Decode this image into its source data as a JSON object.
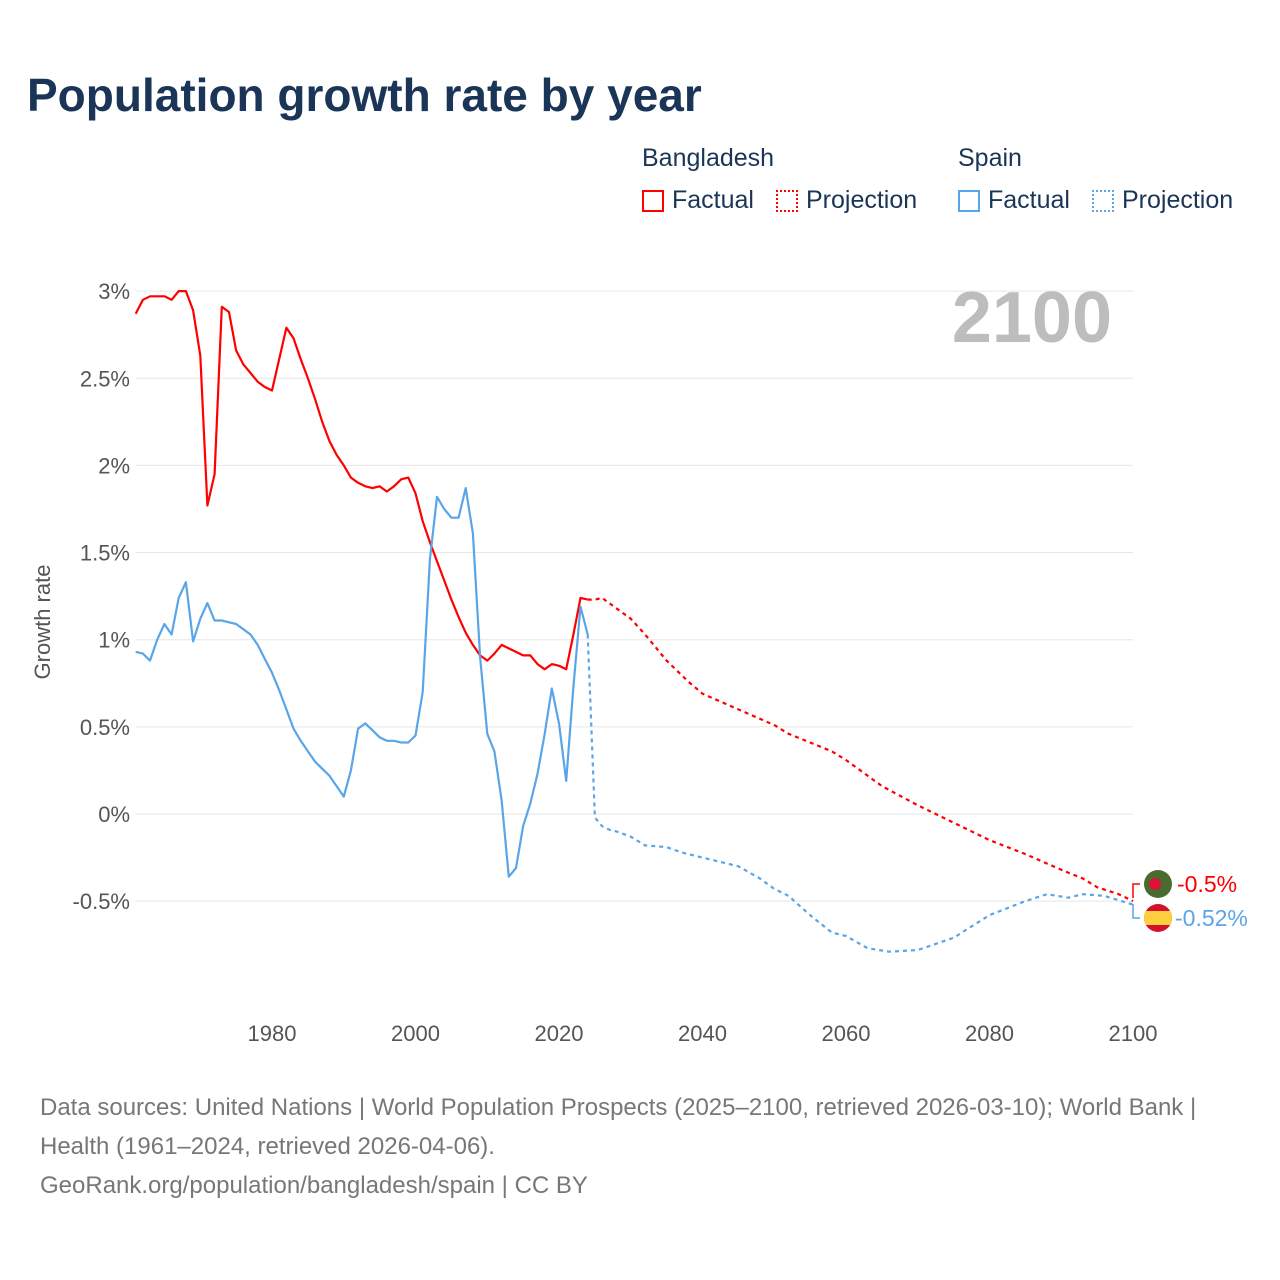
{
  "title": "Population growth rate by year",
  "legend": {
    "groups": [
      {
        "country": "Bangladesh",
        "factual": "Factual",
        "projection": "Projection",
        "color": "#ff0000"
      },
      {
        "country": "Spain",
        "factual": "Factual",
        "projection": "Projection",
        "color": "#5aa5e8"
      }
    ]
  },
  "year_display": "2100",
  "end_labels": {
    "bangladesh": "-0.5%",
    "spain": "-0.52%"
  },
  "footer": {
    "sources": "Data sources: United Nations | World Population Prospects (2025–2100, retrieved 2026-03-10); World Bank | Health (1961–2024, retrieved 2026-04-06).",
    "credit": "GeoRank.org/population/bangladesh/spain | CC BY"
  },
  "chart_data": {
    "type": "line",
    "title": "Population growth rate by year",
    "xlabel": "",
    "ylabel": "Growth rate",
    "xlim": [
      1961,
      2100
    ],
    "ylim": [
      -1.0,
      3.0
    ],
    "yticks": [
      3,
      2.5,
      2,
      1.5,
      1,
      0.5,
      0,
      -0.5
    ],
    "ytick_labels": [
      "3%",
      "2.5%",
      "2%",
      "1.5%",
      "1%",
      "0.5%",
      "0%",
      "-0.5%"
    ],
    "xticks": [
      1980,
      2000,
      2020,
      2040,
      2060,
      2080,
      2100
    ],
    "xtick_labels": [
      "1980",
      "2000",
      "2020",
      "2040",
      "2060",
      "2080",
      "2100"
    ],
    "grid": true,
    "legend_position": "top-right",
    "series": [
      {
        "name": "Bangladesh Factual",
        "color": "#ff0000",
        "style": "solid",
        "x": [
          1961,
          1962,
          1963,
          1964,
          1965,
          1966,
          1967,
          1968,
          1969,
          1970,
          1971,
          1972,
          1973,
          1974,
          1975,
          1976,
          1977,
          1978,
          1979,
          1980,
          1981,
          1982,
          1983,
          1984,
          1985,
          1986,
          1987,
          1988,
          1989,
          1990,
          1991,
          1992,
          1993,
          1994,
          1995,
          1996,
          1997,
          1998,
          1999,
          2000,
          2001,
          2002,
          2003,
          2004,
          2005,
          2006,
          2007,
          2008,
          2009,
          2010,
          2011,
          2012,
          2013,
          2014,
          2015,
          2016,
          2017,
          2018,
          2019,
          2020,
          2021,
          2022,
          2023,
          2024
        ],
        "y": [
          2.87,
          2.95,
          2.97,
          2.97,
          2.97,
          2.95,
          3.0,
          3.0,
          2.89,
          2.63,
          1.77,
          1.95,
          2.91,
          2.88,
          2.66,
          2.58,
          2.53,
          2.48,
          2.45,
          2.43,
          2.61,
          2.79,
          2.73,
          2.61,
          2.5,
          2.38,
          2.25,
          2.14,
          2.06,
          2.0,
          1.93,
          1.9,
          1.88,
          1.87,
          1.88,
          1.85,
          1.88,
          1.92,
          1.93,
          1.84,
          1.68,
          1.56,
          1.45,
          1.34,
          1.23,
          1.13,
          1.04,
          0.97,
          0.91,
          0.88,
          0.92,
          0.97,
          0.95,
          0.93,
          0.91,
          0.91,
          0.86,
          0.83,
          0.86,
          0.85,
          0.83,
          1.03,
          1.24,
          1.23
        ]
      },
      {
        "name": "Bangladesh Projection",
        "color": "#ff0000",
        "style": "dotted",
        "x": [
          2024,
          2025,
          2026,
          2028,
          2030,
          2032,
          2035,
          2038,
          2040,
          2045,
          2050,
          2052,
          2055,
          2058,
          2060,
          2065,
          2070,
          2075,
          2080,
          2085,
          2090,
          2093,
          2095,
          2098,
          2100
        ],
        "y": [
          1.23,
          1.23,
          1.24,
          1.18,
          1.12,
          1.03,
          0.88,
          0.76,
          0.69,
          0.6,
          0.51,
          0.46,
          0.41,
          0.36,
          0.31,
          0.16,
          0.05,
          -0.05,
          -0.15,
          -0.23,
          -0.32,
          -0.37,
          -0.42,
          -0.46,
          -0.5
        ]
      },
      {
        "name": "Spain Factual",
        "color": "#5aa5e8",
        "style": "solid",
        "x": [
          1961,
          1962,
          1963,
          1964,
          1965,
          1966,
          1967,
          1968,
          1969,
          1970,
          1971,
          1972,
          1973,
          1974,
          1975,
          1976,
          1977,
          1978,
          1979,
          1980,
          1981,
          1982,
          1983,
          1984,
          1985,
          1986,
          1987,
          1988,
          1989,
          1990,
          1991,
          1992,
          1993,
          1994,
          1995,
          1996,
          1997,
          1998,
          1999,
          2000,
          2001,
          2002,
          2003,
          2004,
          2005,
          2006,
          2007,
          2008,
          2009,
          2010,
          2011,
          2012,
          2013,
          2014,
          2015,
          2016,
          2017,
          2018,
          2019,
          2020,
          2021,
          2022,
          2023,
          2024
        ],
        "y": [
          0.93,
          0.92,
          0.88,
          1.0,
          1.09,
          1.03,
          1.24,
          1.33,
          0.99,
          1.12,
          1.21,
          1.11,
          1.11,
          1.1,
          1.09,
          1.06,
          1.03,
          0.97,
          0.89,
          0.81,
          0.71,
          0.6,
          0.49,
          0.42,
          0.36,
          0.3,
          0.26,
          0.22,
          0.16,
          0.1,
          0.25,
          0.49,
          0.52,
          0.48,
          0.44,
          0.42,
          0.42,
          0.41,
          0.41,
          0.45,
          0.7,
          1.46,
          1.82,
          1.75,
          1.7,
          1.7,
          1.87,
          1.61,
          0.9,
          0.46,
          0.36,
          0.08,
          -0.36,
          -0.31,
          -0.07,
          0.06,
          0.23,
          0.46,
          0.72,
          0.52,
          0.19,
          0.73,
          1.19,
          1.03
        ]
      },
      {
        "name": "Spain Projection",
        "color": "#5aa5e8",
        "style": "dotted",
        "x": [
          2024,
          2025,
          2026,
          2027,
          2028,
          2030,
          2032,
          2035,
          2037,
          2040,
          2045,
          2048,
          2050,
          2052,
          2055,
          2058,
          2060,
          2063,
          2066,
          2070,
          2075,
          2080,
          2085,
          2088,
          2091,
          2093,
          2096,
          2100
        ],
        "y": [
          1.03,
          -0.02,
          -0.07,
          -0.09,
          -0.1,
          -0.13,
          -0.18,
          -0.19,
          -0.22,
          -0.25,
          -0.3,
          -0.37,
          -0.43,
          -0.47,
          -0.58,
          -0.68,
          -0.7,
          -0.77,
          -0.79,
          -0.78,
          -0.71,
          -0.58,
          -0.5,
          -0.46,
          -0.48,
          -0.46,
          -0.47,
          -0.52
        ]
      }
    ]
  }
}
